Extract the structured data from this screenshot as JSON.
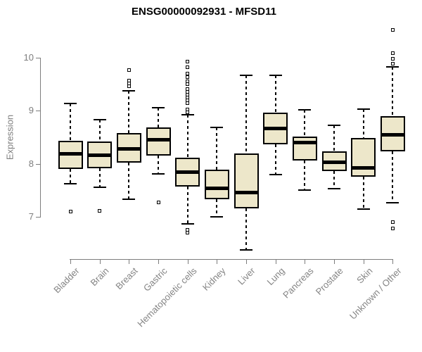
{
  "chart_data": {
    "type": "boxplot",
    "title": "ENSG00000092931 - MFSD11",
    "xlabel": "",
    "ylabel": "Expression",
    "yticks": [
      7,
      8,
      9,
      10
    ],
    "ylim": [
      6.2,
      10.65
    ],
    "grid": false,
    "legend": false,
    "box_fill": "#EDE7CA",
    "box_stroke": "#000000",
    "axis_color": "#7d7d7d",
    "label_color": "#848484",
    "title_color": "#000000",
    "categories": [
      "Bladder",
      "Brain",
      "Breast",
      "Gastric",
      "Hematopoietic cells",
      "Kidney",
      "Liver",
      "Lung",
      "Pancreas",
      "Prostate",
      "Skin",
      "Unknown / Other"
    ],
    "boxes": [
      {
        "category": "Bladder",
        "whisker_low": 7.62,
        "q1": 7.9,
        "median": 8.19,
        "q3": 8.44,
        "whisker_high": 9.14,
        "outliers": [
          7.1
        ]
      },
      {
        "category": "Brain",
        "whisker_low": 7.56,
        "q1": 7.92,
        "median": 8.16,
        "q3": 8.42,
        "whisker_high": 8.83,
        "outliers": [
          7.12
        ]
      },
      {
        "category": "Breast",
        "whisker_low": 7.34,
        "q1": 8.03,
        "median": 8.28,
        "q3": 8.58,
        "whisker_high": 9.37,
        "outliers": [
          9.77,
          9.57,
          9.52,
          9.46
        ]
      },
      {
        "category": "Gastric",
        "whisker_low": 7.81,
        "q1": 8.16,
        "median": 8.46,
        "q3": 8.68,
        "whisker_high": 9.06,
        "outliers": [
          7.28
        ]
      },
      {
        "category": "Hematopoietic cells",
        "whisker_low": 6.87,
        "q1": 7.57,
        "median": 7.84,
        "q3": 8.12,
        "whisker_high": 8.93,
        "outliers": [
          9.93,
          9.82,
          9.7,
          9.63,
          9.56,
          9.5,
          9.41,
          9.35,
          9.3,
          9.25,
          9.19,
          9.14,
          9.03,
          8.97,
          6.76,
          6.71
        ]
      },
      {
        "category": "Kidney",
        "whisker_low": 7.0,
        "q1": 7.34,
        "median": 7.54,
        "q3": 7.89,
        "whisker_high": 8.68,
        "outliers": []
      },
      {
        "category": "Liver",
        "whisker_low": 6.38,
        "q1": 7.16,
        "median": 7.46,
        "q3": 8.2,
        "whisker_high": 9.67,
        "outliers": []
      },
      {
        "category": "Lung",
        "whisker_low": 7.8,
        "q1": 8.37,
        "median": 8.67,
        "q3": 8.97,
        "whisker_high": 9.66,
        "outliers": []
      },
      {
        "category": "Pancreas",
        "whisker_low": 7.51,
        "q1": 8.06,
        "median": 8.4,
        "q3": 8.52,
        "whisker_high": 9.02,
        "outliers": []
      },
      {
        "category": "Prostate",
        "whisker_low": 7.53,
        "q1": 7.86,
        "median": 8.03,
        "q3": 8.24,
        "whisker_high": 8.72,
        "outliers": []
      },
      {
        "category": "Skin",
        "whisker_low": 7.15,
        "q1": 7.76,
        "median": 7.93,
        "q3": 8.49,
        "whisker_high": 9.03,
        "outliers": []
      },
      {
        "category": "Unknown / Other",
        "whisker_low": 7.27,
        "q1": 8.23,
        "median": 8.55,
        "q3": 8.9,
        "whisker_high": 9.82,
        "outliers": [
          10.52,
          10.09,
          9.98,
          9.88,
          6.91,
          6.78
        ]
      }
    ]
  }
}
